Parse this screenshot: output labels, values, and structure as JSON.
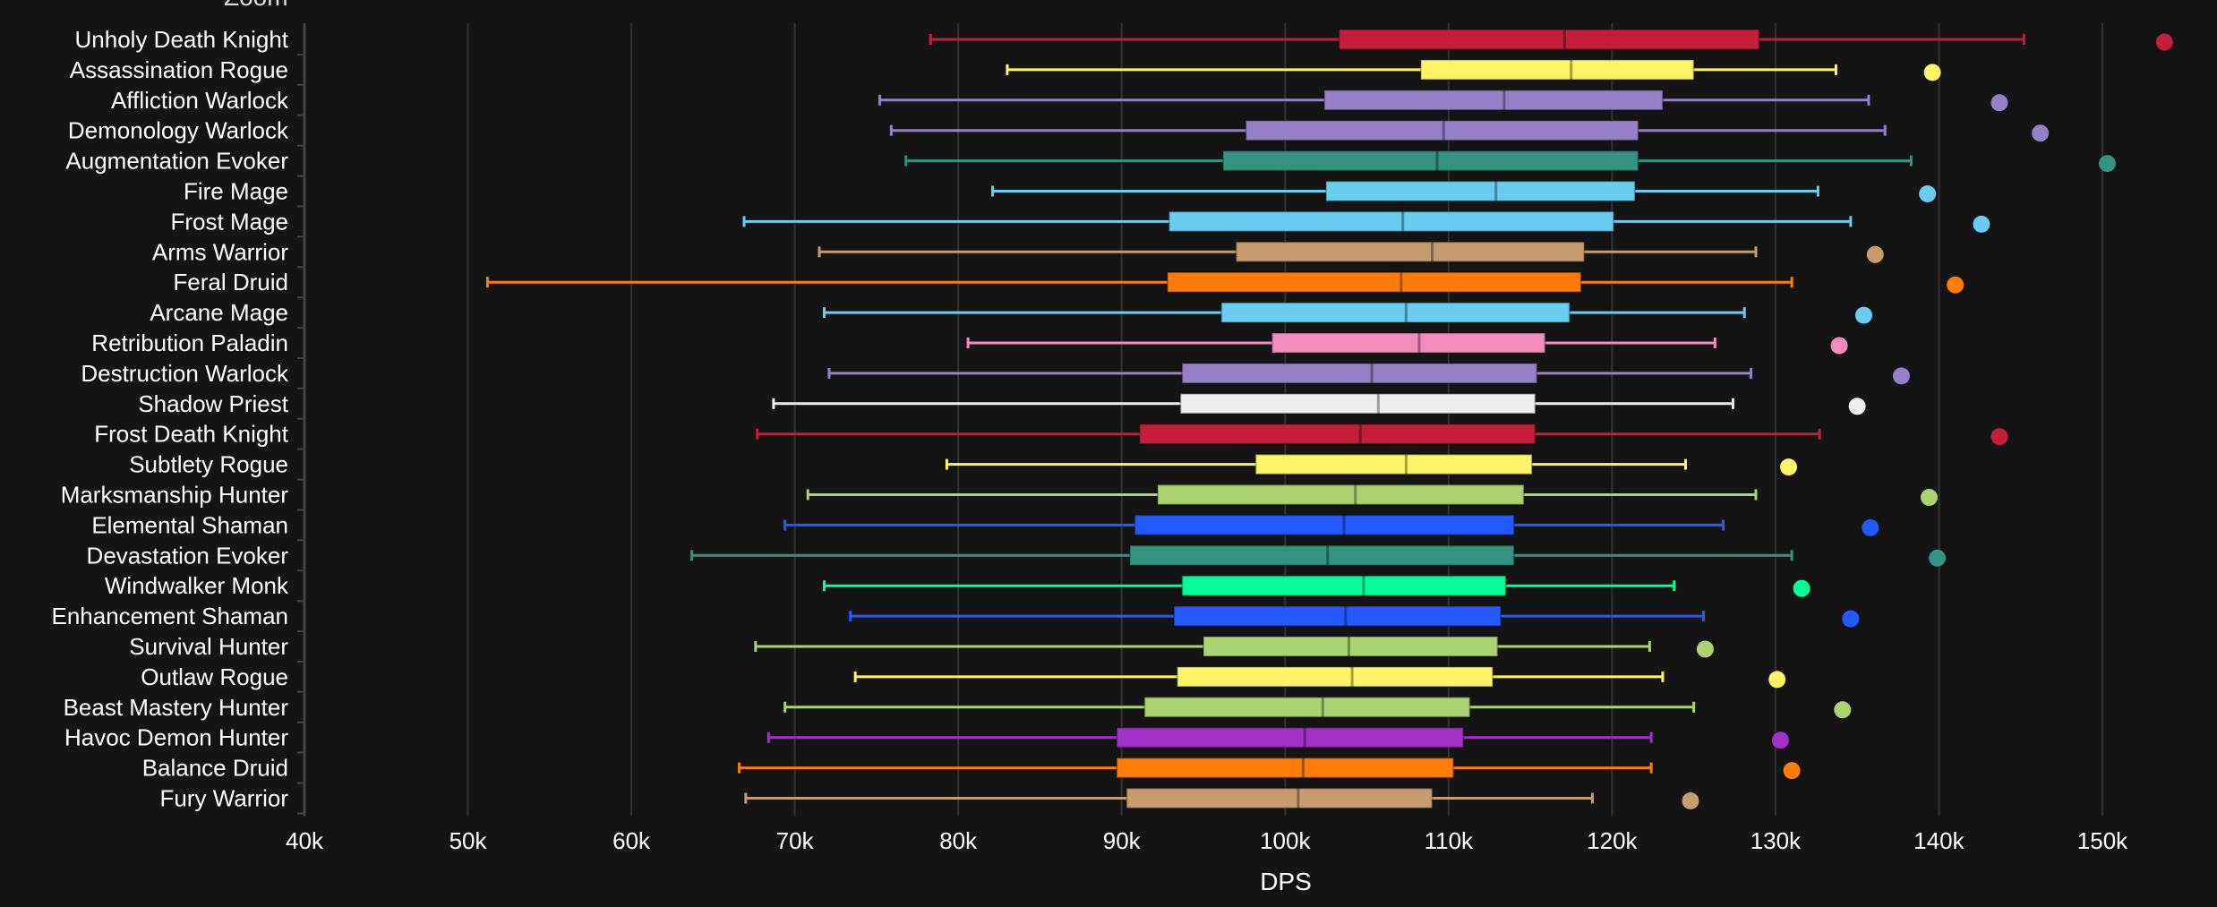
{
  "header": {
    "partial_title": "Zoom"
  },
  "chart_data": {
    "type": "boxplot",
    "orientation": "horizontal",
    "xlabel": "DPS",
    "ylabel": "",
    "xlim": [
      40000,
      150000
    ],
    "x_ticks": [
      "40k",
      "50k",
      "60k",
      "70k",
      "80k",
      "90k",
      "100k",
      "110k",
      "120k",
      "130k",
      "140k",
      "150k"
    ],
    "x_tick_values": [
      40000,
      50000,
      60000,
      70000,
      80000,
      90000,
      100000,
      110000,
      120000,
      130000,
      140000,
      150000
    ],
    "grid": true,
    "legend": "none",
    "units": "DPS",
    "series": [
      {
        "name": "Unholy Death Knight",
        "color": "#c41e3a",
        "min": 78300,
        "q1": 103300,
        "median": 117100,
        "q3": 129000,
        "max": 145200,
        "outlier": 153800
      },
      {
        "name": "Assassination Rogue",
        "color": "#fff468",
        "min": 83000,
        "q1": 108300,
        "median": 117500,
        "q3": 125000,
        "max": 133700,
        "outlier": 139600
      },
      {
        "name": "Affliction Warlock",
        "color": "#9482c9",
        "min": 75200,
        "q1": 102400,
        "median": 113400,
        "q3": 123100,
        "max": 135700,
        "outlier": 143700
      },
      {
        "name": "Demonology Warlock",
        "color": "#9482c9",
        "min": 75900,
        "q1": 97600,
        "median": 109700,
        "q3": 121600,
        "max": 136700,
        "outlier": 146200
      },
      {
        "name": "Augmentation Evoker",
        "color": "#33937f",
        "min": 76800,
        "q1": 96200,
        "median": 109300,
        "q3": 121600,
        "max": 138300,
        "outlier": 150300
      },
      {
        "name": "Fire Mage",
        "color": "#69ccf0",
        "min": 82100,
        "q1": 102500,
        "median": 112900,
        "q3": 121400,
        "max": 132600,
        "outlier": 139300
      },
      {
        "name": "Frost Mage",
        "color": "#69ccf0",
        "min": 66900,
        "q1": 92900,
        "median": 107200,
        "q3": 120100,
        "max": 134600,
        "outlier": 142600
      },
      {
        "name": "Arms Warrior",
        "color": "#c69b6d",
        "min": 71500,
        "q1": 97000,
        "median": 109000,
        "q3": 118300,
        "max": 128800,
        "outlier": 136100
      },
      {
        "name": "Feral Druid",
        "color": "#ff7c0a",
        "min": 51200,
        "q1": 92800,
        "median": 107100,
        "q3": 118100,
        "max": 131000,
        "outlier": 141000
      },
      {
        "name": "Arcane Mage",
        "color": "#69ccf0",
        "min": 71800,
        "q1": 96100,
        "median": 107400,
        "q3": 117400,
        "max": 128100,
        "outlier": 135400
      },
      {
        "name": "Retribution Paladin",
        "color": "#f48cba",
        "min": 80600,
        "q1": 99200,
        "median": 108200,
        "q3": 115900,
        "max": 126300,
        "outlier": 133900
      },
      {
        "name": "Destruction Warlock",
        "color": "#9482c9",
        "min": 72100,
        "q1": 93700,
        "median": 105300,
        "q3": 115400,
        "max": 128500,
        "outlier": 137700
      },
      {
        "name": "Shadow Priest",
        "color": "#eeeeee",
        "min": 68700,
        "q1": 93600,
        "median": 105700,
        "q3": 115300,
        "max": 127400,
        "outlier": 135000
      },
      {
        "name": "Frost Death Knight",
        "color": "#c41e3a",
        "min": 67700,
        "q1": 91100,
        "median": 104600,
        "q3": 115300,
        "max": 132700,
        "outlier": 143700
      },
      {
        "name": "Subtlety Rogue",
        "color": "#fff468",
        "min": 79300,
        "q1": 98200,
        "median": 107400,
        "q3": 115100,
        "max": 124500,
        "outlier": 130800
      },
      {
        "name": "Marksmanship Hunter",
        "color": "#aad372",
        "min": 70800,
        "q1": 92200,
        "median": 104300,
        "q3": 114600,
        "max": 128800,
        "outlier": 139400
      },
      {
        "name": "Elemental Shaman",
        "color": "#2459ff",
        "min": 69400,
        "q1": 90800,
        "median": 103600,
        "q3": 114000,
        "max": 126800,
        "outlier": 135800
      },
      {
        "name": "Devastation Evoker",
        "color": "#33937f",
        "min": 63700,
        "q1": 90500,
        "median": 102600,
        "q3": 114000,
        "max": 131000,
        "outlier": 139900
      },
      {
        "name": "Windwalker Monk",
        "color": "#00ff98",
        "min": 71800,
        "q1": 93700,
        "median": 104800,
        "q3": 113500,
        "max": 123800,
        "outlier": 131600
      },
      {
        "name": "Enhancement Shaman",
        "color": "#2459ff",
        "min": 73400,
        "q1": 93200,
        "median": 103700,
        "q3": 113200,
        "max": 125600,
        "outlier": 134600
      },
      {
        "name": "Survival Hunter",
        "color": "#aad372",
        "min": 67600,
        "q1": 95000,
        "median": 103900,
        "q3": 113000,
        "max": 122300,
        "outlier": 125700
      },
      {
        "name": "Outlaw Rogue",
        "color": "#fff468",
        "min": 73700,
        "q1": 93400,
        "median": 104100,
        "q3": 112700,
        "max": 123100,
        "outlier": 130100
      },
      {
        "name": "Beast Mastery Hunter",
        "color": "#aad372",
        "min": 69400,
        "q1": 91400,
        "median": 102300,
        "q3": 111300,
        "max": 125000,
        "outlier": 134100
      },
      {
        "name": "Havoc Demon Hunter",
        "color": "#a330c9",
        "min": 68400,
        "q1": 89700,
        "median": 101200,
        "q3": 110900,
        "max": 122400,
        "outlier": 130300
      },
      {
        "name": "Balance Druid",
        "color": "#ff7c0a",
        "min": 66600,
        "q1": 89700,
        "median": 101100,
        "q3": 110300,
        "max": 122400,
        "outlier": 131000
      },
      {
        "name": "Fury Warrior",
        "color": "#c69b6d",
        "min": 67000,
        "q1": 90300,
        "median": 100800,
        "q3": 109000,
        "max": 118800,
        "outlier": 124800
      }
    ]
  }
}
